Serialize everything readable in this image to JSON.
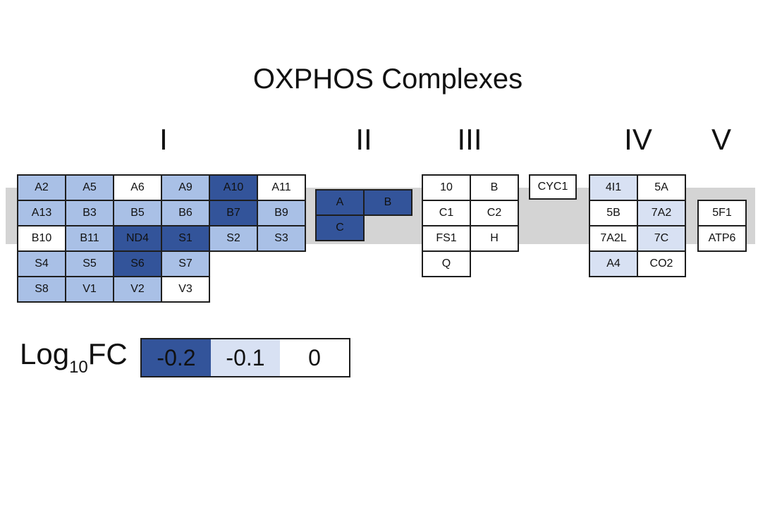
{
  "title": "OXPHOS Complexes",
  "romans": [
    "I",
    "II",
    "III",
    "IV",
    "V"
  ],
  "colors": {
    "lv0": "#ffffff",
    "lv1": "#d8e1f3",
    "lv2": "#a9c0e6",
    "lv3": "#33549a"
  },
  "complex_I": [
    [
      {
        "t": "A2",
        "c": 2
      },
      {
        "t": "A5",
        "c": 2
      },
      {
        "t": "A6",
        "c": 0
      },
      {
        "t": "A9",
        "c": 2
      },
      {
        "t": "A10",
        "c": 3
      },
      {
        "t": "A11",
        "c": 0
      }
    ],
    [
      {
        "t": "A13",
        "c": 2
      },
      {
        "t": "B3",
        "c": 2
      },
      {
        "t": "B5",
        "c": 2
      },
      {
        "t": "B6",
        "c": 2
      },
      {
        "t": "B7",
        "c": 3
      },
      {
        "t": "B9",
        "c": 2
      }
    ],
    [
      {
        "t": "B10",
        "c": 0
      },
      {
        "t": "B11",
        "c": 2
      },
      {
        "t": "ND4",
        "c": 3
      },
      {
        "t": "S1",
        "c": 3
      },
      {
        "t": "S2",
        "c": 2
      },
      {
        "t": "S3",
        "c": 2
      }
    ],
    [
      {
        "t": "S4",
        "c": 2
      },
      {
        "t": "S5",
        "c": 2
      },
      {
        "t": "S6",
        "c": 3
      },
      {
        "t": "S7",
        "c": 2
      },
      null,
      null
    ],
    [
      {
        "t": "S8",
        "c": 2
      },
      {
        "t": "V1",
        "c": 2
      },
      {
        "t": "V2",
        "c": 2
      },
      {
        "t": "V3",
        "c": 0
      },
      null,
      null
    ]
  ],
  "complex_II": [
    [
      {
        "t": "A",
        "c": 3
      },
      {
        "t": "B",
        "c": 3
      }
    ],
    [
      {
        "t": "C",
        "c": 3
      },
      null
    ]
  ],
  "complex_III": [
    [
      {
        "t": "10",
        "c": 0
      },
      {
        "t": "B",
        "c": 0
      }
    ],
    [
      {
        "t": "C1",
        "c": 0
      },
      {
        "t": "C2",
        "c": 0
      }
    ],
    [
      {
        "t": "FS1",
        "c": 0
      },
      {
        "t": "H",
        "c": 0
      }
    ],
    [
      {
        "t": "Q",
        "c": 0
      },
      null
    ]
  ],
  "cyc": [
    [
      {
        "t": "CYC1",
        "c": 0
      }
    ]
  ],
  "complex_IV": [
    [
      {
        "t": "4I1",
        "c": 1
      },
      {
        "t": "5A",
        "c": 0
      }
    ],
    [
      {
        "t": "5B",
        "c": 0
      },
      {
        "t": "7A2",
        "c": 1
      }
    ],
    [
      {
        "t": "7A2L",
        "c": 0
      },
      {
        "t": "7C",
        "c": 1
      }
    ],
    [
      {
        "t": "A4",
        "c": 1
      },
      {
        "t": "CO2",
        "c": 0
      }
    ]
  ],
  "complex_V": [
    [
      {
        "t": "5F1",
        "c": 0
      }
    ],
    [
      {
        "t": "ATP6",
        "c": 0
      }
    ]
  ],
  "legend": {
    "label_main": "Log",
    "label_sub": "10",
    "label_tail": "FC",
    "items": [
      {
        "label": "-0.2",
        "c": 3
      },
      {
        "label": "-0.1",
        "c": 1
      },
      {
        "label": "0",
        "c": 0
      }
    ]
  }
}
